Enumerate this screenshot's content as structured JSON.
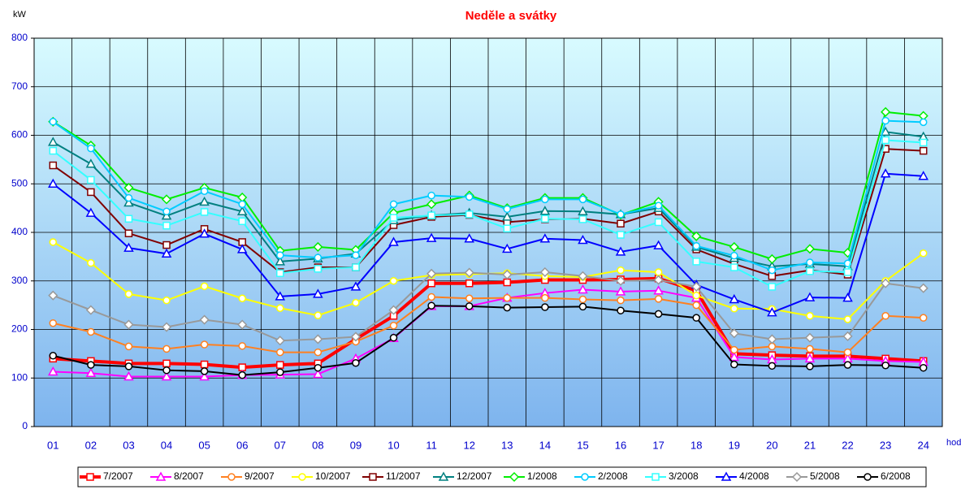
{
  "chart_data": {
    "type": "line",
    "title": "Neděle a svátky",
    "y_axis_label": "kW",
    "x_axis_label": "hod",
    "categories": [
      "01",
      "02",
      "03",
      "04",
      "05",
      "06",
      "07",
      "08",
      "09",
      "10",
      "11",
      "12",
      "13",
      "14",
      "15",
      "16",
      "17",
      "18",
      "19",
      "20",
      "21",
      "22",
      "23",
      "24"
    ],
    "ylim": [
      0,
      800
    ],
    "yticks": [
      0,
      100,
      200,
      300,
      400,
      500,
      600,
      700,
      800
    ],
    "grid": true,
    "legend": "bottom",
    "series": [
      {
        "name": "7/2007",
        "color": "#ff0000",
        "marker": "square",
        "line_width": 4,
        "values": [
          140,
          135,
          130,
          130,
          128,
          122,
          127,
          130,
          180,
          228,
          295,
          295,
          297,
          302,
          302,
          303,
          305,
          280,
          150,
          147,
          145,
          145,
          140,
          135
        ]
      },
      {
        "name": "8/2007",
        "color": "#ff00ff",
        "marker": "triangle",
        "line_width": 2,
        "values": [
          113,
          110,
          103,
          103,
          103,
          106,
          107,
          108,
          140,
          182,
          248,
          248,
          265,
          275,
          282,
          278,
          280,
          265,
          143,
          138,
          140,
          140,
          135,
          133
        ]
      },
      {
        "name": "9/2007",
        "color": "#ff8020",
        "marker": "circle",
        "line_width": 2,
        "values": [
          213,
          195,
          165,
          160,
          169,
          166,
          153,
          153,
          175,
          208,
          267,
          264,
          265,
          265,
          262,
          260,
          263,
          250,
          158,
          165,
          160,
          153,
          228,
          224
        ]
      },
      {
        "name": "10/2007",
        "color": "#ffff00",
        "marker": "circle",
        "line_width": 2,
        "values": [
          380,
          337,
          273,
          260,
          289,
          264,
          244,
          229,
          255,
          300,
          312,
          314,
          316,
          310,
          308,
          322,
          318,
          270,
          243,
          242,
          228,
          221,
          300,
          357
        ]
      },
      {
        "name": "11/2007",
        "color": "#800000",
        "marker": "square",
        "line_width": 2,
        "values": [
          538,
          483,
          398,
          374,
          407,
          380,
          318,
          328,
          328,
          415,
          432,
          436,
          421,
          427,
          428,
          418,
          443,
          365,
          335,
          310,
          322,
          313,
          572,
          568
        ]
      },
      {
        "name": "12/2007",
        "color": "#008080",
        "marker": "triangle",
        "line_width": 2,
        "values": [
          586,
          541,
          461,
          434,
          463,
          443,
          340,
          346,
          356,
          425,
          435,
          440,
          432,
          444,
          443,
          437,
          450,
          370,
          347,
          330,
          335,
          330,
          607,
          597
        ]
      },
      {
        "name": "1/2008",
        "color": "#00ee00",
        "marker": "diamond",
        "line_width": 2,
        "values": [
          628,
          579,
          492,
          468,
          492,
          472,
          362,
          370,
          364,
          440,
          458,
          476,
          450,
          471,
          471,
          436,
          463,
          392,
          370,
          345,
          366,
          358,
          648,
          640
        ]
      },
      {
        "name": "2/2008",
        "color": "#00ccff",
        "marker": "circle",
        "line_width": 2,
        "values": [
          628,
          573,
          471,
          443,
          485,
          458,
          353,
          348,
          353,
          458,
          476,
          473,
          448,
          468,
          468,
          437,
          455,
          372,
          352,
          322,
          338,
          336,
          630,
          627
        ]
      },
      {
        "name": "3/2008",
        "color": "#33ffff",
        "marker": "square",
        "line_width": 2,
        "values": [
          568,
          508,
          428,
          414,
          442,
          423,
          316,
          325,
          328,
          430,
          435,
          437,
          408,
          428,
          427,
          395,
          421,
          340,
          328,
          288,
          320,
          318,
          590,
          585
        ]
      },
      {
        "name": "4/2008",
        "color": "#0000ff",
        "marker": "triangle",
        "line_width": 2,
        "values": [
          500,
          440,
          368,
          356,
          397,
          365,
          268,
          273,
          288,
          380,
          388,
          387,
          366,
          387,
          384,
          360,
          373,
          292,
          262,
          235,
          266,
          265,
          521,
          516
        ]
      },
      {
        "name": "5/2008",
        "color": "#999999",
        "marker": "diamond",
        "line_width": 2,
        "values": [
          270,
          240,
          210,
          205,
          220,
          210,
          177,
          180,
          185,
          240,
          315,
          317,
          313,
          318,
          310,
          300,
          302,
          288,
          192,
          180,
          183,
          186,
          295,
          285
        ]
      },
      {
        "name": "6/2008",
        "color": "#000000",
        "marker": "circle",
        "line_width": 2,
        "values": [
          146,
          127,
          124,
          116,
          114,
          106,
          112,
          121,
          131,
          183,
          249,
          248,
          245,
          246,
          247,
          239,
          232,
          224,
          128,
          125,
          124,
          127,
          126,
          121
        ]
      }
    ]
  }
}
